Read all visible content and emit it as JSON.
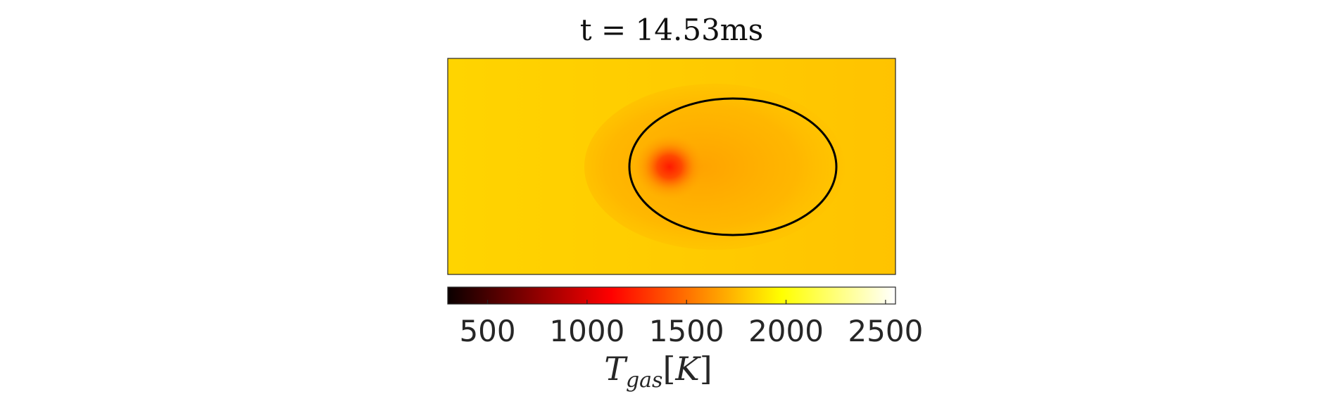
{
  "chart_data": {
    "type": "heatmap",
    "title": "t = 14.53ms",
    "colormap": "hot",
    "colorbar": {
      "orientation": "horizontal",
      "range": [
        300,
        2550
      ],
      "ticks": [
        500,
        1000,
        1500,
        2000,
        2500
      ],
      "tick_labels": [
        "500",
        "1000",
        "1500",
        "2000",
        "2500"
      ],
      "label": "T_gas [K]",
      "label_parts": {
        "main": "T",
        "sub": "gas",
        "open": "[",
        "unit": "K",
        "close": "]"
      }
    },
    "field": {
      "background_value": 2000,
      "min_value": 1320,
      "hot_spot_location": "left part of the droplet interface",
      "droplet_interior_value": 1780
    },
    "interface_contour": {
      "color": "#000000",
      "shape": "ellipse"
    },
    "axes_visible": false
  }
}
